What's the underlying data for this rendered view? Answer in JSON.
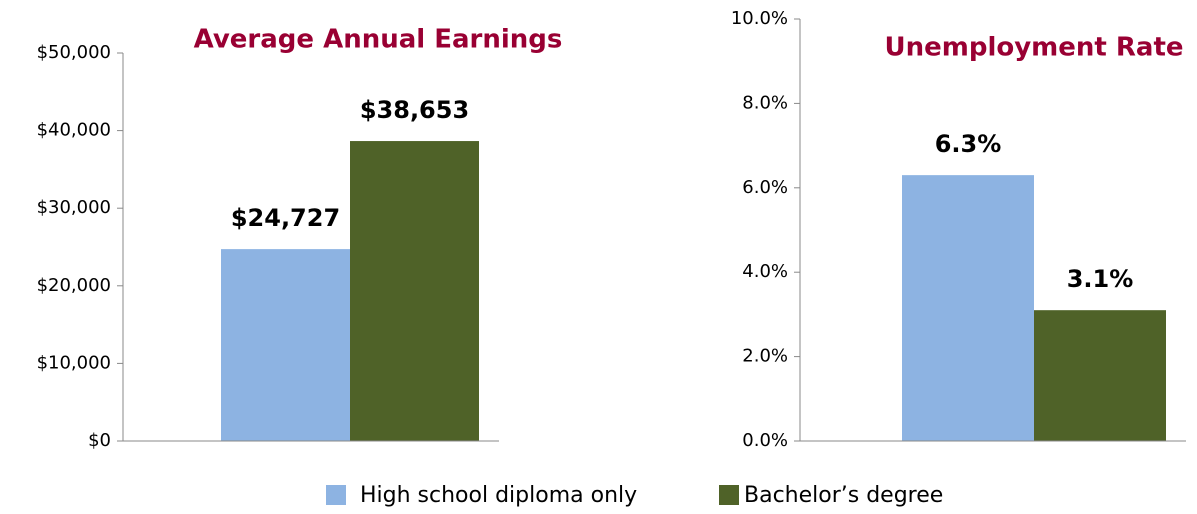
{
  "chart_data": [
    {
      "type": "bar",
      "title": "Average Annual Earnings",
      "series": [
        {
          "name": "High school diploma only",
          "color": "#8db3e2",
          "values": [
            24727
          ],
          "value_labels": [
            "$24,727"
          ]
        },
        {
          "name": "Bachelor’s degree",
          "color": "#4f6228",
          "values": [
            38653
          ],
          "value_labels": [
            "$38,653"
          ]
        }
      ],
      "ylim": [
        0,
        50000
      ],
      "yticks": [
        {
          "value": 0,
          "label": "$0"
        },
        {
          "value": 10000,
          "label": "$10,000"
        },
        {
          "value": 20000,
          "label": "$20,000"
        },
        {
          "value": 30000,
          "label": "$30,000"
        },
        {
          "value": 40000,
          "label": "$40,000"
        },
        {
          "value": 50000,
          "label": "$50,000"
        }
      ]
    },
    {
      "type": "bar",
      "title": "Unemployment Rate",
      "series": [
        {
          "color": "#8db3e2",
          "values": [
            6.3
          ],
          "value_labels": [
            "6.3%"
          ]
        },
        {
          "color": "#4f6228",
          "values": [
            3.1
          ],
          "value_labels": [
            "3.1%"
          ]
        }
      ],
      "ylim": [
        0,
        10
      ],
      "yticks": [
        {
          "value": 0,
          "label": "0.0%"
        },
        {
          "value": 2,
          "label": "2.0%"
        },
        {
          "value": 4,
          "label": "4.0%"
        },
        {
          "value": 6,
          "label": "6.0%"
        },
        {
          "value": 8,
          "label": "8.0%"
        },
        {
          "value": 10,
          "label": "10.0%"
        }
      ]
    }
  ]
}
